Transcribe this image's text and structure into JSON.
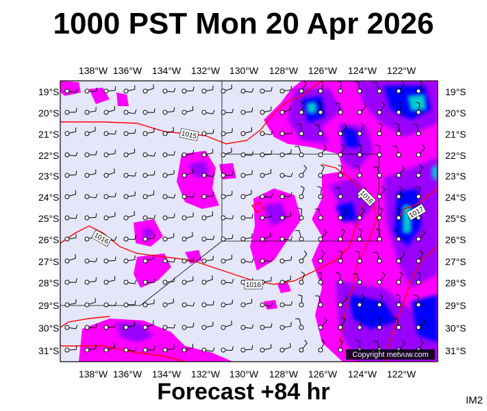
{
  "header": {
    "title": "1000 PST Mon 20 Apr 2026"
  },
  "footer": {
    "forecast": "Forecast +84 hr",
    "code": "IM2"
  },
  "map": {
    "lon_labels": [
      "138°W",
      "136°W",
      "134°W",
      "132°W",
      "130°W",
      "128°W",
      "126°W",
      "124°W",
      "122°W"
    ],
    "lat_labels": [
      "19°S",
      "20°S",
      "21°S",
      "22°S",
      "23°S",
      "24°S",
      "25°S",
      "26°S",
      "27°S",
      "28°S",
      "29°S",
      "30°S",
      "31°S"
    ],
    "isobar_labels": [
      "1015",
      "1016",
      "1016",
      "1017",
      "1016"
    ],
    "copyright": "Copyright metvuw.com",
    "colors": {
      "ocean": "#e6e6fa",
      "rain_light": "#ff00ff",
      "rain_moderate": "#9900ff",
      "rain_heavy": "#0000ff",
      "rain_very_heavy": "#00cccc",
      "isobar": "#ff0000",
      "wind_barb": "#000000"
    }
  }
}
